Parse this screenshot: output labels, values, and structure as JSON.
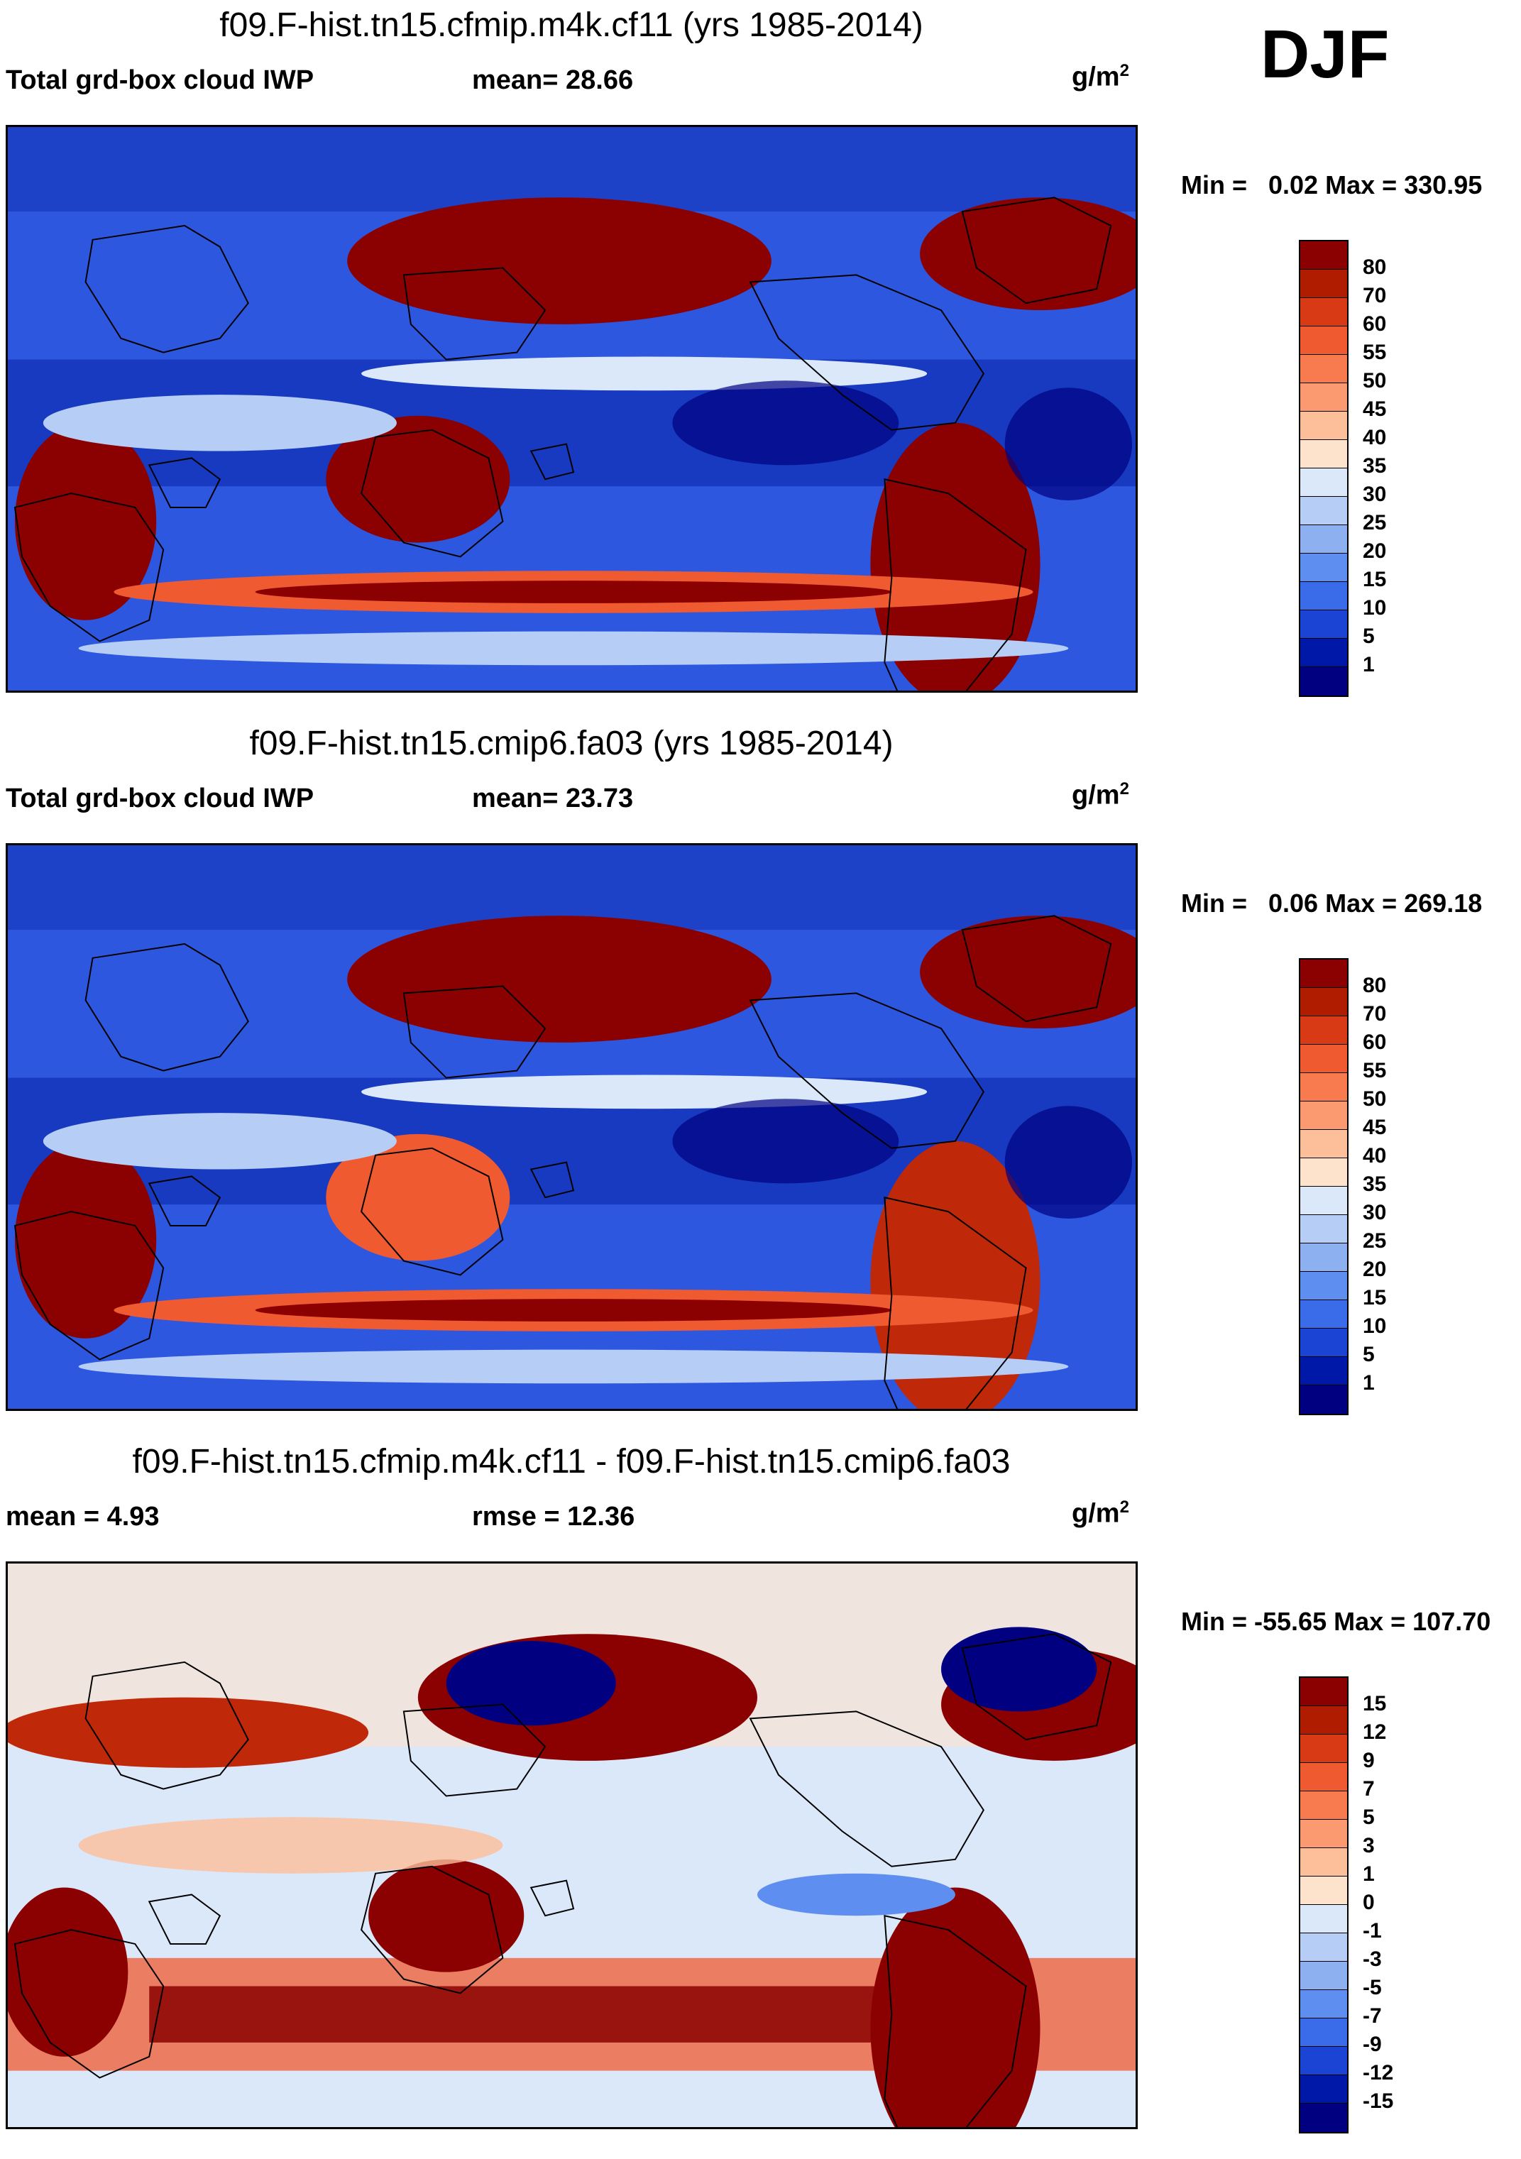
{
  "season": "DJF",
  "panels": [
    {
      "title": "f09.F-hist.tn15.cfmip.m4k.cf11 (yrs 1985-2014)",
      "left_label": "Total grd-box cloud IWP",
      "mid_label": "mean=  28.66",
      "unit": "g/m",
      "unit_sup": "2",
      "minmax": "Min =   0.02 Max = 330.95",
      "levels": [
        "80",
        "70",
        "60",
        "55",
        "50",
        "45",
        "40",
        "35",
        "30",
        "25",
        "20",
        "15",
        "10",
        "5",
        "1"
      ],
      "colors": [
        "#8b0000",
        "#b01c00",
        "#d83a16",
        "#f05a30",
        "#f77b4f",
        "#fb9a70",
        "#fdbe9a",
        "#fde3cc",
        "#dbe8fa",
        "#b6cef5",
        "#8cb0f0",
        "#5d8ef0",
        "#3a6be8",
        "#1c44d4",
        "#0018a8",
        "#000080"
      ]
    },
    {
      "title": "f09.F-hist.tn15.cmip6.fa03 (yrs 1985-2014)",
      "left_label": "Total grd-box cloud IWP",
      "mid_label": "mean=  23.73",
      "unit": "g/m",
      "unit_sup": "2",
      "minmax": "Min =   0.06 Max = 269.18",
      "levels": [
        "80",
        "70",
        "60",
        "55",
        "50",
        "45",
        "40",
        "35",
        "30",
        "25",
        "20",
        "15",
        "10",
        "5",
        "1"
      ],
      "colors": [
        "#8b0000",
        "#b01c00",
        "#d83a16",
        "#f05a30",
        "#f77b4f",
        "#fb9a70",
        "#fdbe9a",
        "#fde3cc",
        "#dbe8fa",
        "#b6cef5",
        "#8cb0f0",
        "#5d8ef0",
        "#3a6be8",
        "#1c44d4",
        "#0018a8",
        "#000080"
      ]
    },
    {
      "title": "f09.F-hist.tn15.cfmip.m4k.cf11 - f09.F-hist.tn15.cmip6.fa03",
      "left_label": "mean =   4.93",
      "mid_label": "rmse =  12.36",
      "unit": "g/m",
      "unit_sup": "2",
      "minmax": "Min = -55.65 Max = 107.70",
      "levels": [
        "15",
        "12",
        "9",
        "7",
        "5",
        "3",
        "1",
        "0",
        "-1",
        "-3",
        "-5",
        "-7",
        "-9",
        "-12",
        "-15"
      ],
      "colors": [
        "#8b0000",
        "#b01c00",
        "#d83a16",
        "#f05a30",
        "#f77b4f",
        "#fb9a70",
        "#fdbe9a",
        "#fde3cc",
        "#dbe8fa",
        "#b6cef5",
        "#8cb0f0",
        "#5d8ef0",
        "#3a6be8",
        "#1c44d4",
        "#0018a8",
        "#000080"
      ]
    }
  ],
  "chart_data": [
    {
      "type": "heatmap",
      "title": "f09.F-hist.tn15.cfmip.m4k.cf11 (yrs 1985-2014)",
      "variable": "Total grd-box cloud IWP",
      "units": "g/m2",
      "mean": 28.66,
      "min": 0.02,
      "max": 330.95,
      "contour_levels": [
        1,
        5,
        10,
        15,
        20,
        25,
        30,
        35,
        40,
        45,
        50,
        55,
        60,
        70,
        80
      ]
    },
    {
      "type": "heatmap",
      "title": "f09.F-hist.tn15.cmip6.fa03 (yrs 1985-2014)",
      "variable": "Total grd-box cloud IWP",
      "units": "g/m2",
      "mean": 23.73,
      "min": 0.06,
      "max": 269.18,
      "contour_levels": [
        1,
        5,
        10,
        15,
        20,
        25,
        30,
        35,
        40,
        45,
        50,
        55,
        60,
        70,
        80
      ]
    },
    {
      "type": "heatmap",
      "title": "f09.F-hist.tn15.cfmip.m4k.cf11 - f09.F-hist.tn15.cmip6.fa03",
      "units": "g/m2",
      "mean": 4.93,
      "rmse": 12.36,
      "min": -55.65,
      "max": 107.7,
      "contour_levels": [
        -15,
        -12,
        -9,
        -7,
        -5,
        -3,
        -1,
        0,
        1,
        3,
        5,
        7,
        9,
        12,
        15
      ]
    }
  ]
}
